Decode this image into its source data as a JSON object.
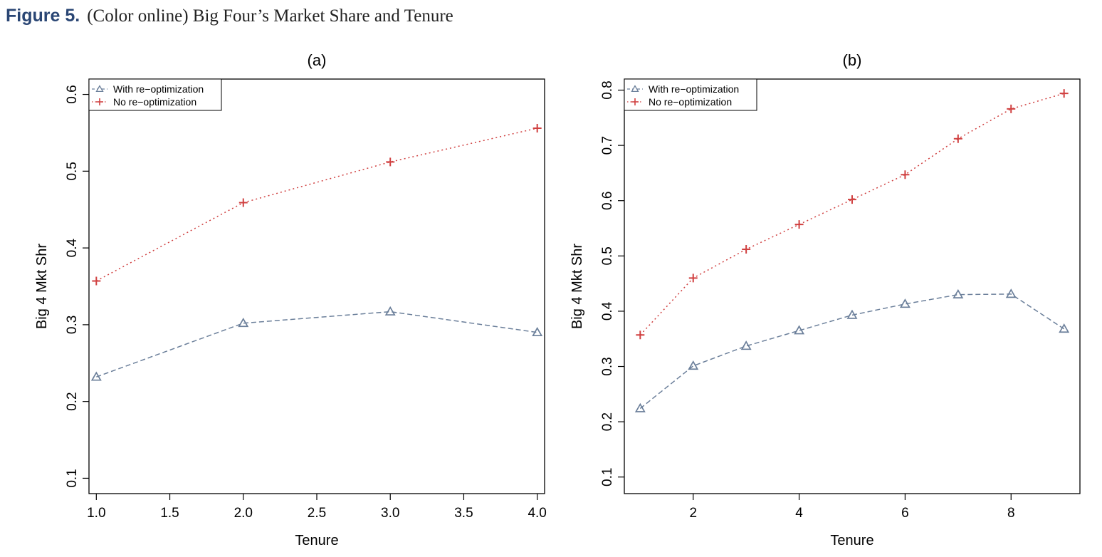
{
  "caption": {
    "figure_label": "Figure 5.",
    "text": "(Color online) Big Four’s Market Share and Tenure"
  },
  "colors": {
    "with": "#6b7f9a",
    "no": "#d04040",
    "caption_accent": "#2a4674"
  },
  "chart_data": [
    {
      "type": "line",
      "title": "(a)",
      "xlabel": "Tenure",
      "ylabel": "Big 4 Mkt Shr",
      "xlim": [
        0.95,
        4.05
      ],
      "ylim": [
        0.08,
        0.62
      ],
      "xticks": [
        1.0,
        1.5,
        2.0,
        2.5,
        3.0,
        3.5,
        4.0
      ],
      "xtick_labels": [
        "1.0",
        "1.5",
        "2.0",
        "2.5",
        "3.0",
        "3.5",
        "4.0"
      ],
      "yticks": [
        0.1,
        0.2,
        0.3,
        0.4,
        0.5,
        0.6
      ],
      "ytick_labels": [
        "0.1",
        "0.2",
        "0.3",
        "0.4",
        "0.5",
        "0.6"
      ],
      "legend_position": "top-left",
      "grid": false,
      "series": [
        {
          "name": "With re−optimization",
          "marker": "triangle",
          "line": "dashed",
          "color": "#6b7f9a",
          "x": [
            1,
            2,
            3,
            4
          ],
          "y": [
            0.232,
            0.302,
            0.317,
            0.29
          ]
        },
        {
          "name": "No re−optimization",
          "marker": "plus",
          "line": "dotted",
          "color": "#d04040",
          "x": [
            1,
            2,
            3,
            4
          ],
          "y": [
            0.357,
            0.459,
            0.512,
            0.556
          ]
        }
      ]
    },
    {
      "type": "line",
      "title": "(b)",
      "xlabel": "Tenure",
      "ylabel": "Big 4 Mkt Shr",
      "xlim": [
        0.7,
        9.3
      ],
      "ylim": [
        0.07,
        0.82
      ],
      "xticks": [
        2,
        4,
        6,
        8
      ],
      "xtick_labels": [
        "2",
        "4",
        "6",
        "8"
      ],
      "yticks": [
        0.1,
        0.2,
        0.3,
        0.4,
        0.5,
        0.6,
        0.7,
        0.8
      ],
      "ytick_labels": [
        "0.1",
        "0.2",
        "0.3",
        "0.4",
        "0.5",
        "0.6",
        "0.7",
        "0.8"
      ],
      "legend_position": "top-left",
      "grid": false,
      "series": [
        {
          "name": "With re−optimization",
          "marker": "triangle",
          "line": "dashed",
          "color": "#6b7f9a",
          "x": [
            1,
            2,
            3,
            4,
            5,
            6,
            7,
            8,
            9
          ],
          "y": [
            0.224,
            0.301,
            0.337,
            0.365,
            0.393,
            0.413,
            0.43,
            0.431,
            0.368
          ]
        },
        {
          "name": "No re−optimization",
          "marker": "plus",
          "line": "dotted",
          "color": "#d04040",
          "x": [
            1,
            2,
            3,
            4,
            5,
            6,
            7,
            8,
            9
          ],
          "y": [
            0.357,
            0.46,
            0.512,
            0.557,
            0.602,
            0.647,
            0.712,
            0.766,
            0.794
          ]
        }
      ]
    }
  ]
}
